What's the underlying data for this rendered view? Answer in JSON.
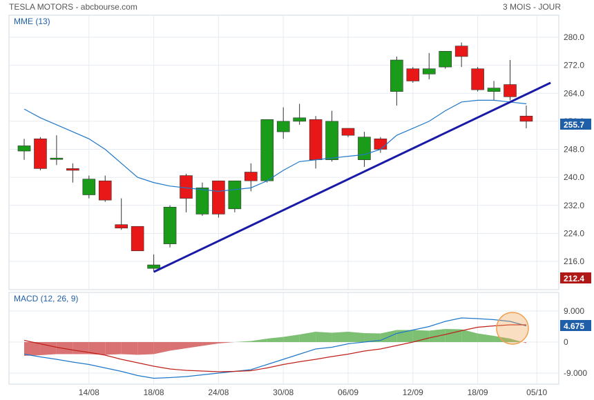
{
  "header": {
    "title": "TESLA MOTORS - abcbourse.com",
    "period": "3 MOIS - JOUR"
  },
  "colors": {
    "up": "#1a9b1a",
    "down": "#e81818",
    "mme_line": "#1f77c8",
    "trendline": "#1a1aa8",
    "macd_line": "#1f77c8",
    "signal_line": "#c0201a",
    "hist_pos": "#7dbf73",
    "hist_neg": "#d97272",
    "badge_last": "#1f5fa8",
    "badge_low": "#b01818",
    "highlight_circle": "#f0a050"
  },
  "chart_data": [
    {
      "type": "candlestick",
      "indicator_label": "MME (13)",
      "x_tick_labels": [
        "14/08",
        "18/08",
        "24/08",
        "30/08",
        "06/09",
        "12/09",
        "18/09",
        "05/10"
      ],
      "y_ticks": [
        216,
        224,
        232,
        240,
        248,
        256,
        264,
        272,
        280
      ],
      "y_tick_labels": [
        "216.0",
        "224.0",
        "232.0",
        "240.0",
        "248.0",
        "256.0",
        "264.0",
        "272.0",
        "280.0"
      ],
      "ylim": [
        210,
        285
      ],
      "last_value_label": "255.7",
      "low_value_label": "212.4",
      "candles": [
        {
          "o": 247.5,
          "h": 251,
          "l": 245,
          "c": 249
        },
        {
          "o": 251,
          "h": 251.5,
          "l": 242,
          "c": 242.5
        },
        {
          "o": 245.5,
          "h": 252,
          "l": 243.5,
          "c": 245.5
        },
        {
          "o": 242.5,
          "h": 244,
          "l": 238.5,
          "c": 242
        },
        {
          "o": 235,
          "h": 240.5,
          "l": 234,
          "c": 239.5
        },
        {
          "o": 239,
          "h": 240.5,
          "l": 233,
          "c": 233.5
        },
        {
          "o": 226.5,
          "h": 234,
          "l": 225,
          "c": 225.5
        },
        {
          "o": 226,
          "h": 226,
          "l": 219,
          "c": 219
        },
        {
          "o": 214,
          "h": 218,
          "l": 213,
          "c": 215
        },
        {
          "o": 221,
          "h": 232,
          "l": 220,
          "c": 231.5
        },
        {
          "o": 240.5,
          "h": 241,
          "l": 230,
          "c": 234
        },
        {
          "o": 229.5,
          "h": 238.5,
          "l": 229,
          "c": 237
        },
        {
          "o": 239,
          "h": 239,
          "l": 228.5,
          "c": 229.5
        },
        {
          "o": 231,
          "h": 239,
          "l": 230,
          "c": 239
        },
        {
          "o": 241.5,
          "h": 244,
          "l": 236,
          "c": 239
        },
        {
          "o": 239,
          "h": 256.5,
          "l": 238.5,
          "c": 256.5
        },
        {
          "o": 253,
          "h": 260,
          "l": 251,
          "c": 256
        },
        {
          "o": 256,
          "h": 261,
          "l": 255,
          "c": 257
        },
        {
          "o": 256.5,
          "h": 257.5,
          "l": 242.5,
          "c": 245
        },
        {
          "o": 245,
          "h": 259,
          "l": 244.5,
          "c": 256
        },
        {
          "o": 254,
          "h": 254,
          "l": 251.5,
          "c": 252
        },
        {
          "o": 245,
          "h": 253,
          "l": 243,
          "c": 251.5
        },
        {
          "o": 251,
          "h": 251.5,
          "l": 247,
          "c": 248
        },
        {
          "o": 264.5,
          "h": 274.5,
          "l": 260.5,
          "c": 273.5
        },
        {
          "o": 271,
          "h": 271.5,
          "l": 267,
          "c": 267.5
        },
        {
          "o": 269.5,
          "h": 275.5,
          "l": 268,
          "c": 271
        },
        {
          "o": 271.5,
          "h": 276,
          "l": 271,
          "c": 276
        },
        {
          "o": 277.5,
          "h": 278.5,
          "l": 271.5,
          "c": 274.5
        },
        {
          "o": 271,
          "h": 271.5,
          "l": 264.5,
          "c": 265
        },
        {
          "o": 264.5,
          "h": 267.5,
          "l": 262,
          "c": 265.5
        },
        {
          "o": 266.5,
          "h": 273.5,
          "l": 262,
          "c": 263
        },
        {
          "o": 257.5,
          "h": 260.5,
          "l": 254,
          "c": 256
        }
      ],
      "mme": [
        259.5,
        257,
        255,
        253,
        251,
        248,
        244,
        240,
        238.5,
        237.5,
        237,
        236.5,
        236,
        236.5,
        237,
        239,
        242,
        244.5,
        245,
        245.5,
        246,
        246.5,
        248,
        252,
        254,
        256,
        259,
        261.5,
        262,
        262,
        261.5,
        261
      ],
      "trendline": {
        "start_index": 8,
        "start_value": 213,
        "end_index": 32.5,
        "end_value": 267
      }
    },
    {
      "type": "line",
      "indicator_label": "MACD (12, 26, 9)",
      "y_ticks": [
        9,
        0,
        -9
      ],
      "y_tick_labels": [
        "9.000",
        "0",
        "-9.000"
      ],
      "ylim": [
        -11,
        12
      ],
      "last_value_label": "4.675",
      "macd": [
        -3.5,
        -4.3,
        -5,
        -5.8,
        -6.5,
        -7.5,
        -8.5,
        -9.7,
        -10.5,
        -10.3,
        -10,
        -9.5,
        -9,
        -8.5,
        -8,
        -6.5,
        -5,
        -3.5,
        -2,
        -1.5,
        -0.5,
        0,
        0.5,
        2.5,
        3.5,
        4.5,
        6,
        7,
        6.8,
        6.5,
        6,
        4.7
      ],
      "signal": [
        0.5,
        -0.5,
        -1.5,
        -2.3,
        -3,
        -3.8,
        -5,
        -6,
        -7,
        -7.8,
        -8.2,
        -8.4,
        -8.6,
        -8.5,
        -8.3,
        -7.5,
        -6.5,
        -5.7,
        -5,
        -4.2,
        -3.5,
        -2.6,
        -2,
        -1,
        0,
        1.2,
        2.2,
        3.3,
        4.3,
        4.7,
        5,
        5
      ]
    }
  ]
}
